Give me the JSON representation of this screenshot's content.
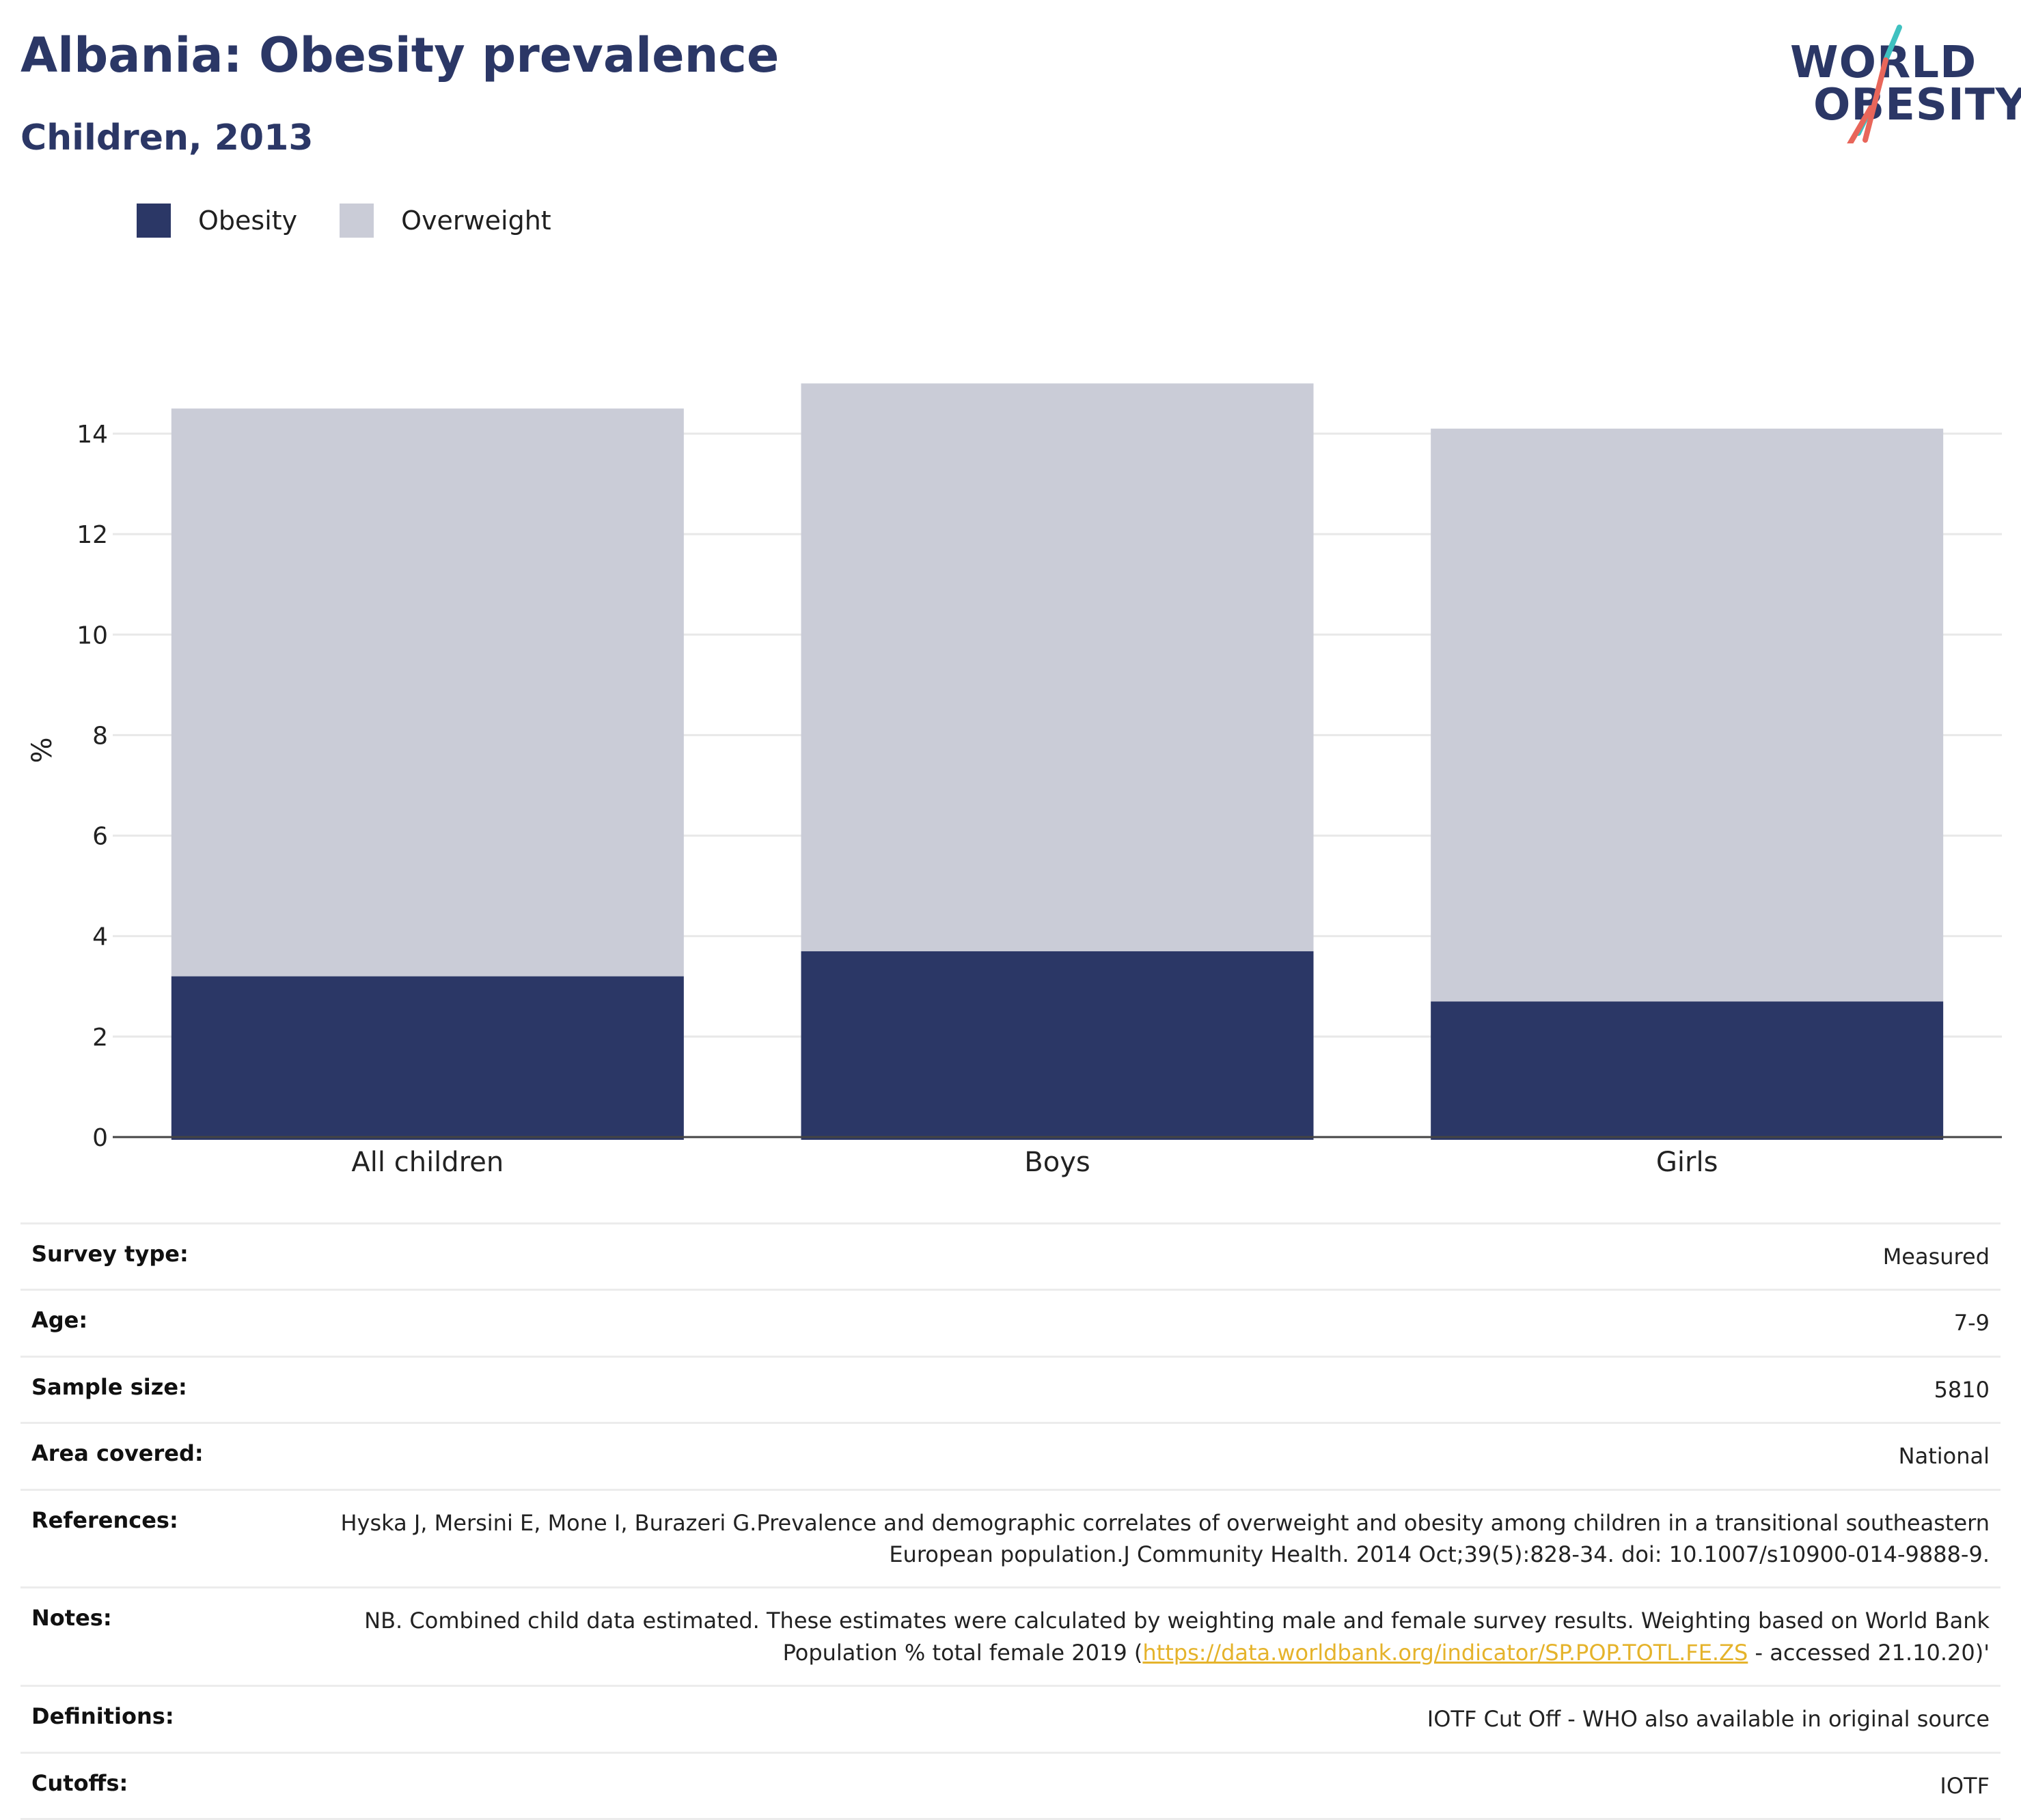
{
  "header": {
    "title": "Albania: Obesity prevalence",
    "subtitle": "Children, 2013"
  },
  "logo": {
    "line1": "WORLD",
    "line2": "OBESITY"
  },
  "colors": {
    "obesity": "#2b3766",
    "overweight": "#caccd7",
    "title": "#2b3766",
    "link": "#e5b32b",
    "logo_slash_teal": "#3fc1c0",
    "logo_slash_red": "#e8665a"
  },
  "legend": {
    "items": [
      "Obesity",
      "Overweight"
    ]
  },
  "chart_data": {
    "type": "bar",
    "stacked": true,
    "title": "Albania: Obesity prevalence",
    "subtitle": "Children, 2013",
    "categories": [
      "All children",
      "Boys",
      "Girls"
    ],
    "series": [
      {
        "name": "Obesity",
        "values": [
          3.2,
          3.7,
          2.7
        ]
      },
      {
        "name": "Overweight",
        "values": [
          11.3,
          11.3,
          11.4
        ]
      }
    ],
    "xlabel": "",
    "ylabel": "%",
    "ylim": [
      0,
      15
    ],
    "yticks": [
      0,
      2,
      4,
      6,
      8,
      10,
      12,
      14
    ],
    "grid": true,
    "legend_position": "top-left"
  },
  "info": {
    "rows": [
      {
        "label": "Survey type:",
        "value": "Measured"
      },
      {
        "label": "Age:",
        "value": "7-9"
      },
      {
        "label": "Sample size:",
        "value": "5810"
      },
      {
        "label": "Area covered:",
        "value": "National"
      },
      {
        "label": "References:",
        "value": "Hyska J, Mersini E, Mone I, Burazeri G.Prevalence and demographic correlates of overweight and obesity among children in a transitional southeastern European population.J Community Health. 2014 Oct;39(5):828-34. doi: 10.1007/s10900-014-9888-9."
      },
      {
        "label": "Definitions:",
        "value": "IOTF Cut Off - WHO also available in original source"
      },
      {
        "label": "Cutoffs:",
        "value": "IOTF"
      }
    ],
    "notes": {
      "label": "Notes:",
      "before": "NB. Combined child data estimated. These estimates were calculated by weighting male and female survey results. Weighting based on World Bank Population % total female 2019 (",
      "link": "https://data.worldbank.org/indicator/SP.POP.TOTL.FE.ZS",
      "after": " - accessed 21.10.20)'"
    }
  }
}
